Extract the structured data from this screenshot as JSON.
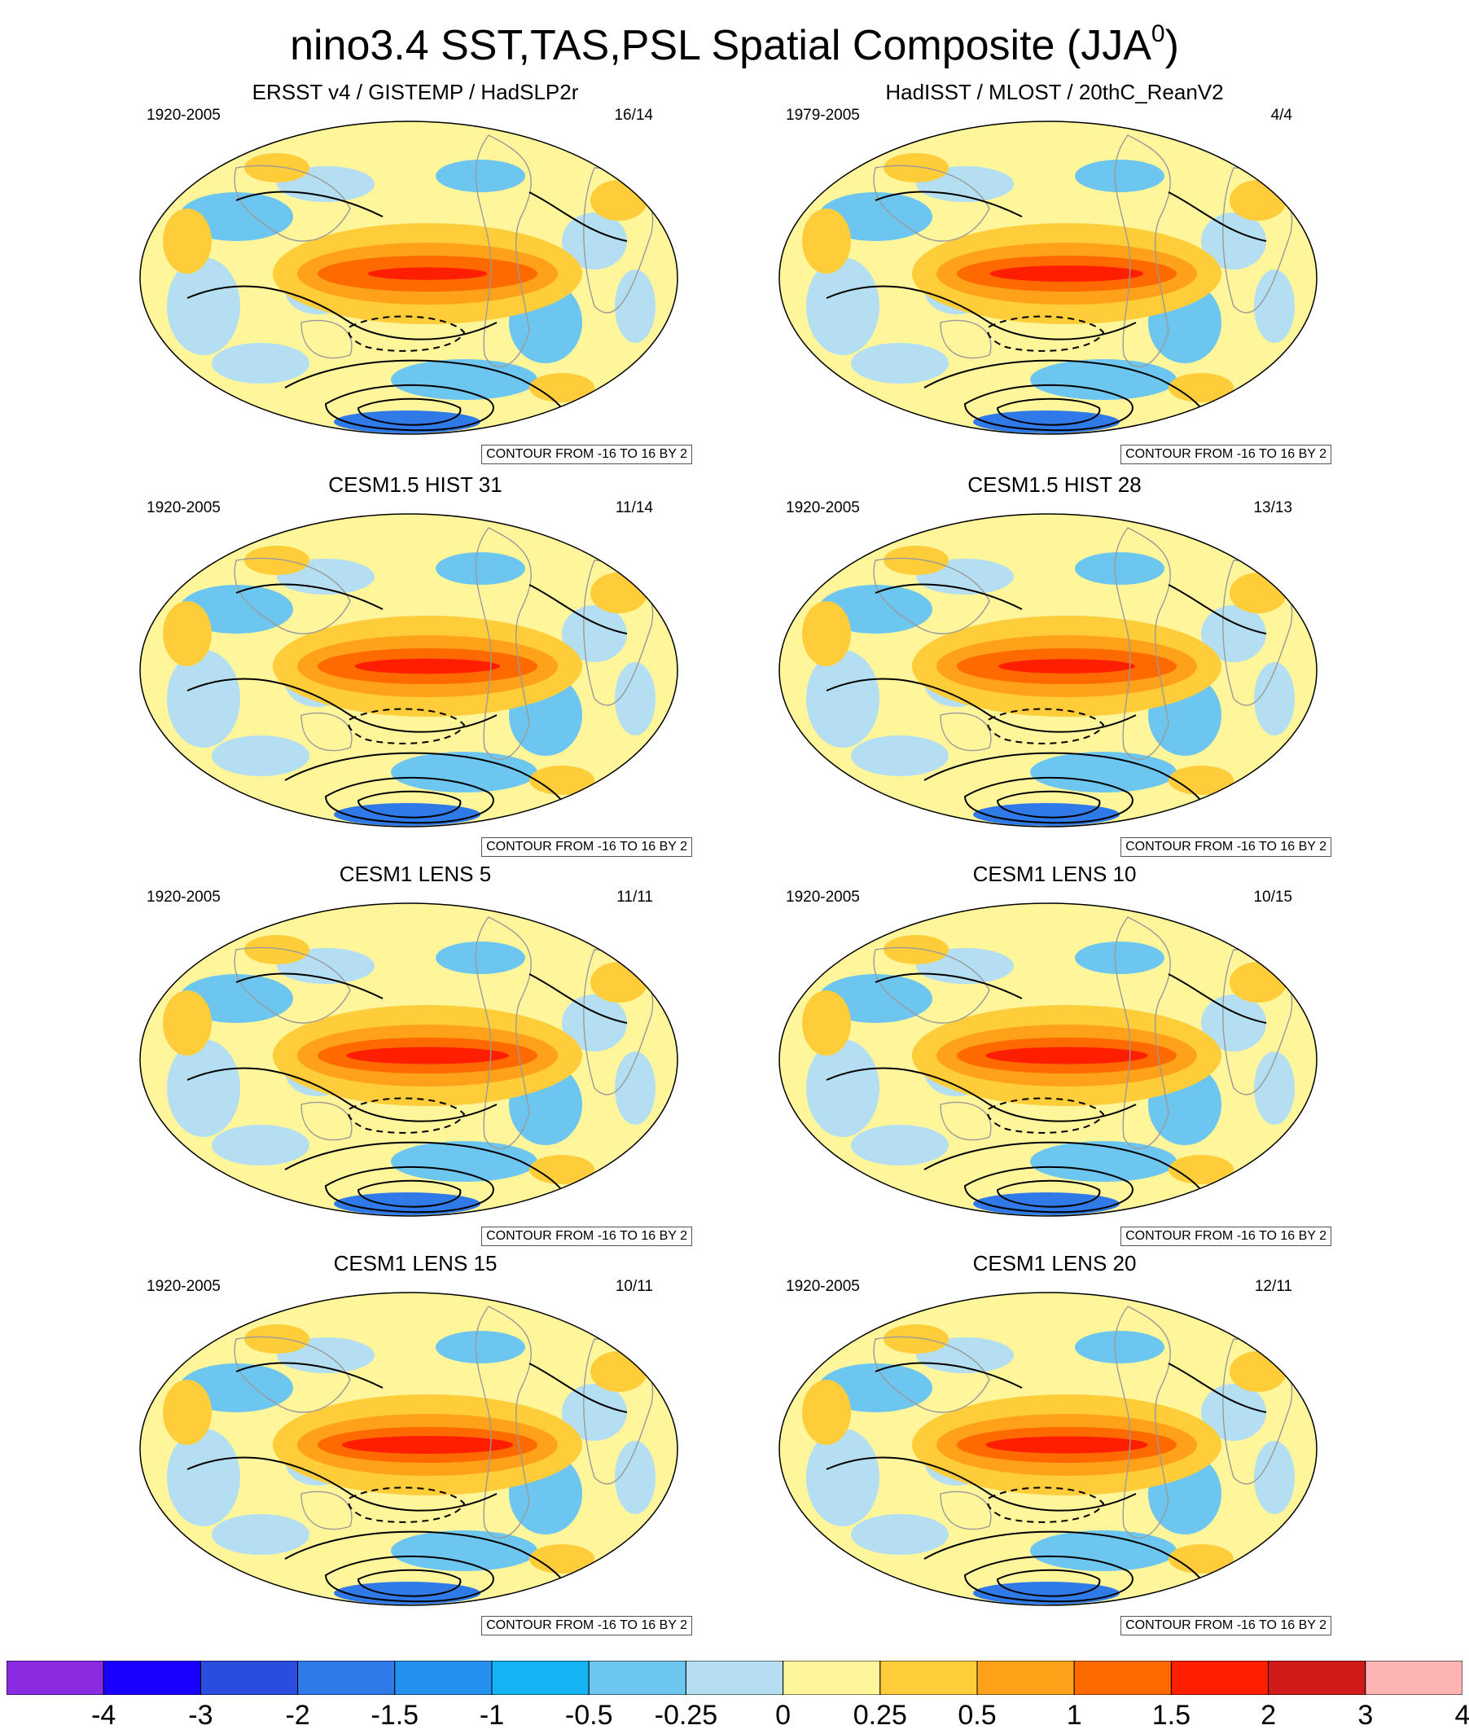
{
  "figure": {
    "title": "nino3.4 SST,TAS,PSL Spatial Composite (JJA",
    "title_sup": "0",
    "title_close": ")"
  },
  "panels": [
    {
      "title": "ERSST v4 / GISTEMP / HadSLP2r",
      "period": "1920-2005",
      "count": "16/14",
      "contour": "CONTOUR FROM -16 TO 16 BY 2",
      "warm_strength": 0.7,
      "pattern": "obs-long"
    },
    {
      "title": "HadISST / MLOST / 20thC_ReanV2",
      "period": "1979-2005",
      "count": "4/4",
      "contour": "CONTOUR FROM -16 TO 16 BY 2",
      "warm_strength": 0.9,
      "pattern": "obs-short"
    },
    {
      "title": "CESM1.5 HIST 31",
      "period": "1920-2005",
      "count": "11/14",
      "contour": "CONTOUR FROM -16 TO 16 BY 2",
      "warm_strength": 0.85,
      "pattern": "model"
    },
    {
      "title": "CESM1.5 HIST 28",
      "period": "1920-2005",
      "count": "13/13",
      "contour": "CONTOUR FROM -16 TO 16 BY 2",
      "warm_strength": 0.8,
      "pattern": "model"
    },
    {
      "title": "CESM1 LENS 5",
      "period": "1920-2005",
      "count": "11/11",
      "contour": "CONTOUR FROM -16 TO 16 BY 2",
      "warm_strength": 0.95,
      "pattern": "model"
    },
    {
      "title": "CESM1 LENS 10",
      "period": "1920-2005",
      "count": "10/15",
      "contour": "CONTOUR FROM -16 TO 16 BY 2",
      "warm_strength": 0.95,
      "pattern": "model"
    },
    {
      "title": "CESM1 LENS 15",
      "period": "1920-2005",
      "count": "10/11",
      "contour": "CONTOUR FROM -16 TO 16 BY 2",
      "warm_strength": 1.0,
      "pattern": "model"
    },
    {
      "title": "CESM1 LENS 20",
      "period": "1920-2005",
      "count": "12/11",
      "contour": "CONTOUR FROM -16 TO 16 BY 2",
      "warm_strength": 0.95,
      "pattern": "model"
    }
  ],
  "colorbar": {
    "labels": [
      "-4",
      "-3",
      "-2",
      "-1.5",
      "-1",
      "-0.5",
      "-0.25",
      "0",
      "0.25",
      "0.5",
      "1",
      "1.5",
      "2",
      "3",
      "4"
    ],
    "colors": [
      "#8a2be2",
      "#1a00ff",
      "#2a4de0",
      "#2f7ae8",
      "#2491f0",
      "#14b4f2",
      "#6cc6f0",
      "#b4dff2",
      "#fff59a",
      "#ffcc3a",
      "#ffa21a",
      "#ff6a00",
      "#ff1e00",
      "#d21a1a",
      "#ffb4b4"
    ]
  }
}
